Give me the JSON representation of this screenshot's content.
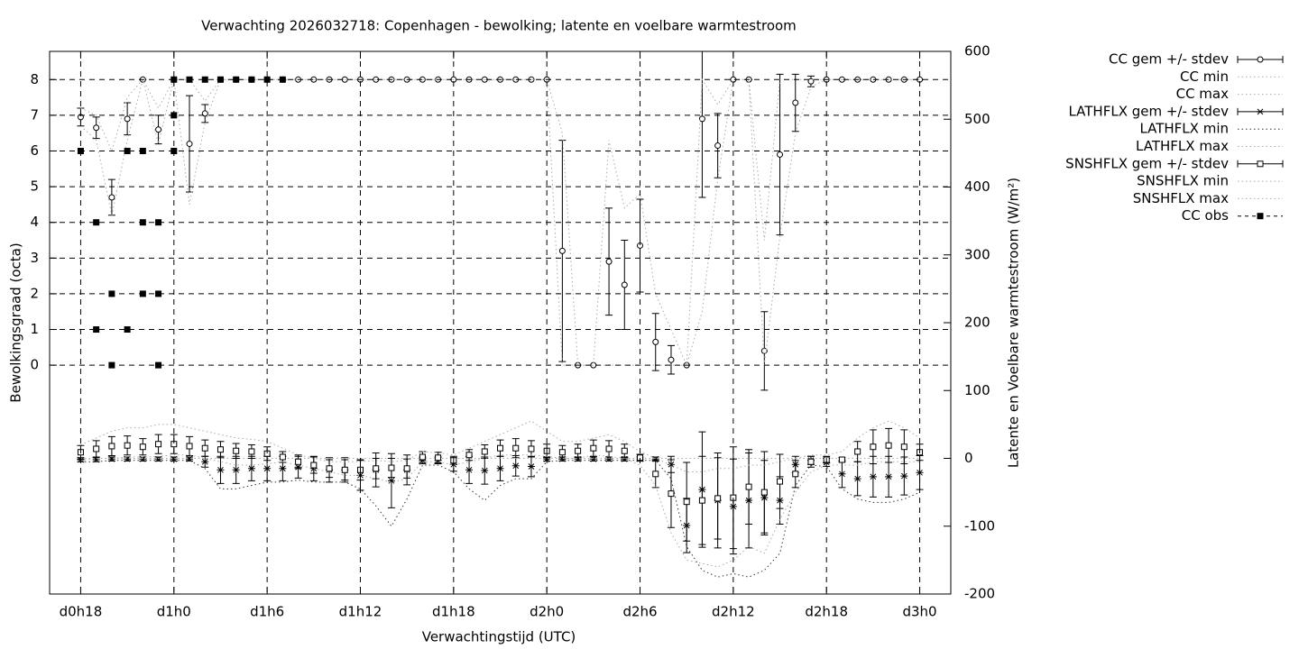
{
  "chart_data": {
    "type": "errorbar",
    "title": "Verwachting 2026032718: Copenhagen - bewolking; latente en voelbare warmtestroom",
    "x_label": "Verwachtingstijd (UTC)",
    "y_label": "Bewolkingsgraad (octa)",
    "y2_label": "Latente en Voelbare warmtestroom (W/m²)",
    "xlim": [
      -2,
      56
    ],
    "xticks": [
      {
        "value": 0,
        "label": "d0h18"
      },
      {
        "value": 6,
        "label": "d1h0"
      },
      {
        "value": 12,
        "label": "d1h6"
      },
      {
        "value": 18,
        "label": "d1h12"
      },
      {
        "value": 24,
        "label": "d1h18"
      },
      {
        "value": 30,
        "label": "d2h0"
      },
      {
        "value": 36,
        "label": "d2h6"
      },
      {
        "value": 42,
        "label": "d2h12"
      },
      {
        "value": 48,
        "label": "d2h18"
      },
      {
        "value": 54,
        "label": "d3h0"
      }
    ],
    "ylim": [
      -6.41,
      8.79
    ],
    "yticks": [
      0,
      1,
      2,
      3,
      4,
      5,
      6,
      7,
      8
    ],
    "y2lim": [
      -200,
      600
    ],
    "y2ticks": [
      -200,
      -100,
      0,
      100,
      200,
      300,
      400,
      500,
      600
    ],
    "grid": true,
    "legend": "outside-right",
    "x": [
      0,
      1,
      2,
      3,
      4,
      5,
      6,
      7,
      8,
      9,
      10,
      11,
      12,
      13,
      14,
      15,
      16,
      17,
      18,
      19,
      20,
      21,
      22,
      23,
      24,
      25,
      26,
      27,
      28,
      29,
      30,
      31,
      32,
      33,
      34,
      35,
      36,
      37,
      38,
      39,
      40,
      41,
      42,
      43,
      44,
      45,
      46,
      47,
      48,
      49,
      50,
      51,
      52,
      53,
      54
    ],
    "series": [
      {
        "name": "CC gem +/- stdev",
        "kind": "errorbar",
        "marker": "circle",
        "color": "#000000",
        "axis": "y",
        "values": [
          6.95,
          6.65,
          4.7,
          6.9,
          8,
          6.6,
          8,
          6.2,
          7.05,
          8,
          8,
          8,
          8,
          8,
          8,
          8,
          8,
          8,
          8,
          8,
          8,
          8,
          8,
          8,
          8,
          8,
          8,
          8,
          8,
          8,
          8,
          3.2,
          0,
          0,
          2.9,
          2.25,
          3.35,
          0.65,
          0.15,
          0,
          6.9,
          6.15,
          8,
          8,
          0.4,
          5.9,
          7.35,
          7.95,
          8,
          8,
          8,
          8,
          8,
          8,
          8
        ],
        "errors": [
          0.25,
          0.3,
          0.5,
          0.45,
          0,
          0.4,
          0,
          1.35,
          0.25,
          0,
          0,
          0,
          0,
          0,
          0,
          0,
          0,
          0,
          0,
          0,
          0,
          0,
          0,
          0,
          0,
          0,
          0,
          0,
          0,
          0,
          0,
          3.1,
          0,
          0,
          1.5,
          1.25,
          1.3,
          0.8,
          0.4,
          0,
          2.2,
          0.9,
          0,
          0,
          1.1,
          2.25,
          0.8,
          0.15,
          0,
          0,
          0,
          0,
          0,
          0,
          0
        ]
      },
      {
        "name": "CC min",
        "kind": "line",
        "color": "#aaaaaa",
        "axis": "y",
        "values": [
          6.7,
          6.3,
          4.2,
          6.3,
          8,
          6.2,
          8,
          4.5,
          6.8,
          8,
          8,
          8,
          8,
          8,
          8,
          8,
          8,
          8,
          8,
          8,
          8,
          8,
          8,
          8,
          8,
          8,
          8,
          8,
          8,
          8,
          8,
          0,
          0,
          0,
          0,
          0,
          0,
          0,
          0,
          0,
          1.5,
          5.2,
          8,
          8,
          0,
          3.6,
          6.5,
          7.8,
          8,
          8,
          8,
          8,
          8,
          8,
          8
        ]
      },
      {
        "name": "CC max",
        "kind": "line",
        "color": "#aaaaaa",
        "axis": "y",
        "values": [
          7.2,
          7.0,
          6.0,
          7.5,
          8,
          7.2,
          8,
          8,
          7.4,
          8,
          8,
          8,
          8,
          8,
          8,
          8,
          8,
          8,
          8,
          8,
          8,
          8,
          8,
          8,
          8,
          8,
          8,
          8,
          8,
          8,
          8,
          6.5,
          0,
          0,
          6.3,
          4.4,
          4.8,
          2,
          1,
          0,
          8,
          7.3,
          8,
          8,
          3.5,
          8,
          8,
          8,
          8,
          8,
          8,
          8,
          8,
          8,
          8
        ]
      },
      {
        "name": "LATHFLX gem +/- stdev",
        "kind": "errorbar",
        "marker": "star",
        "color": "#000000",
        "axis": "y2",
        "values": [
          -2,
          -2,
          -1,
          -1,
          -1,
          -1,
          -1,
          -1,
          -5,
          -17,
          -17,
          -15,
          -15,
          -15,
          -13,
          -15,
          -17,
          -17,
          -25,
          -17,
          -33,
          -17,
          -3,
          -3,
          -9,
          -17,
          -18,
          -15,
          -11,
          -12,
          -1,
          -1,
          -1,
          -1,
          -1,
          -1,
          -1,
          -1,
          -9,
          -99,
          -46,
          -62,
          -71,
          -62,
          -58,
          -62,
          -9,
          -3,
          -6,
          -23,
          -30,
          -27,
          -27,
          -26,
          -21
        ],
        "errors": [
          3,
          3,
          3,
          3,
          3,
          3,
          3,
          3,
          8,
          20,
          20,
          18,
          18,
          18,
          16,
          18,
          18,
          18,
          22,
          25,
          40,
          22,
          5,
          5,
          10,
          20,
          20,
          18,
          15,
          15,
          3,
          3,
          3,
          3,
          3,
          3,
          3,
          3,
          12,
          40,
          85,
          70,
          70,
          70,
          55,
          35,
          12,
          6,
          6,
          20,
          25,
          30,
          30,
          28,
          25
        ]
      },
      {
        "name": "LATHFLX min",
        "kind": "line",
        "color": "#333333",
        "axis": "y2",
        "values": [
          -5,
          -5,
          -3,
          -3,
          -3,
          -3,
          -3,
          -3,
          -15,
          -45,
          -45,
          -40,
          -35,
          -35,
          -32,
          -35,
          -35,
          -35,
          -45,
          -70,
          -100,
          -60,
          -10,
          -10,
          -20,
          -45,
          -62,
          -40,
          -30,
          -30,
          -5,
          -3,
          -3,
          -3,
          -3,
          -3,
          -3,
          -3,
          -30,
          -130,
          -165,
          -175,
          -170,
          -175,
          -165,
          -140,
          -40,
          -10,
          -12,
          -45,
          -60,
          -65,
          -65,
          -60,
          -50
        ]
      },
      {
        "name": "LATHFLX max",
        "kind": "line",
        "color": "#aaaaaa",
        "axis": "y2",
        "values": [
          0,
          0,
          0,
          0,
          0,
          0,
          0,
          0,
          0,
          0,
          0,
          0,
          0,
          0,
          0,
          0,
          0,
          0,
          0,
          0,
          0,
          0,
          0,
          0,
          0,
          0,
          0,
          0,
          0,
          0,
          0,
          0,
          0,
          0,
          0,
          0,
          0,
          0,
          0,
          0,
          0,
          0,
          0,
          0,
          0,
          0,
          0,
          0,
          0,
          0,
          0,
          0,
          0,
          0,
          0
        ]
      },
      {
        "name": "SNSHFLX gem +/- stdev",
        "kind": "errorbar",
        "marker": "square",
        "color": "#000000",
        "axis": "y2",
        "values": [
          9,
          14,
          18,
          19,
          17,
          21,
          21,
          18,
          15,
          13,
          11,
          10,
          7,
          2,
          -5,
          -10,
          -15,
          -17,
          -17,
          -15,
          -14,
          -15,
          2,
          1,
          -3,
          5,
          10,
          15,
          15,
          14,
          11,
          9,
          11,
          15,
          14,
          11,
          1,
          -23,
          -52,
          -64,
          -62,
          -59,
          -58,
          -42,
          -50,
          -34,
          -23,
          -5,
          -2,
          -2,
          10,
          17,
          19,
          17,
          9
        ],
        "errors": [
          10,
          12,
          14,
          14,
          12,
          14,
          14,
          14,
          12,
          12,
          11,
          10,
          10,
          8,
          10,
          12,
          13,
          15,
          15,
          15,
          14,
          14,
          8,
          8,
          6,
          8,
          10,
          12,
          14,
          12,
          10,
          10,
          10,
          12,
          12,
          10,
          5,
          20,
          50,
          58,
          65,
          60,
          75,
          55,
          60,
          40,
          20,
          8,
          5,
          3,
          15,
          25,
          25,
          25,
          12
        ]
      },
      {
        "name": "SNSHFLX min",
        "kind": "line",
        "color": "#aaaaaa",
        "axis": "y2",
        "values": [
          -3,
          0,
          0,
          2,
          2,
          3,
          5,
          5,
          0,
          -5,
          -10,
          -10,
          -8,
          -5,
          -10,
          -15,
          -20,
          -25,
          -25,
          -30,
          -35,
          -30,
          -5,
          -5,
          -10,
          -5,
          0,
          5,
          5,
          5,
          3,
          0,
          0,
          5,
          3,
          0,
          -10,
          -40,
          -110,
          -150,
          -155,
          -160,
          -150,
          -130,
          -140,
          -90,
          -50,
          -20,
          -10,
          -10,
          -10,
          -5,
          -5,
          -5,
          -5
        ]
      },
      {
        "name": "SNSHFLX max",
        "kind": "line",
        "color": "#aaaaaa",
        "axis": "y2",
        "values": [
          20,
          30,
          40,
          45,
          45,
          50,
          50,
          45,
          40,
          35,
          30,
          28,
          25,
          15,
          5,
          0,
          -5,
          -5,
          -5,
          -3,
          -5,
          -3,
          10,
          8,
          5,
          15,
          25,
          35,
          45,
          55,
          40,
          25,
          25,
          30,
          35,
          25,
          10,
          0,
          -10,
          -20,
          -20,
          -15,
          -15,
          -10,
          -10,
          -5,
          0,
          5,
          5,
          10,
          30,
          45,
          55,
          45,
          30
        ]
      },
      {
        "name": "CC obs",
        "kind": "points",
        "marker": "filled-square",
        "color": "#000000",
        "axis": "y",
        "x": [
          0,
          1,
          1,
          2,
          2,
          3,
          3,
          4,
          4,
          4,
          5,
          5,
          5,
          6,
          6,
          6,
          7,
          8,
          9,
          10,
          11,
          12,
          13
        ],
        "values": [
          6,
          4,
          1,
          2,
          0,
          6,
          1,
          6,
          4,
          2,
          4,
          2,
          0,
          8,
          7,
          6,
          8,
          8,
          8,
          8,
          8,
          8,
          8
        ]
      }
    ]
  }
}
